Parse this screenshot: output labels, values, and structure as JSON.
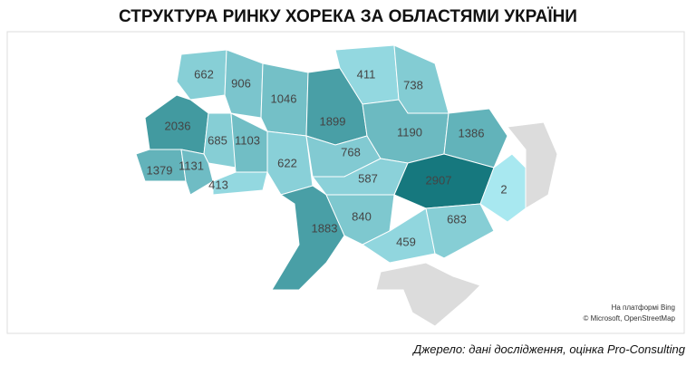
{
  "title": "СТРУКТУРА РИНКУ ХОРЕКА ЗА ОБЛАСТЯМИ УКРАЇНИ",
  "regions": [
    {
      "value": 662
    },
    {
      "value": 906
    },
    {
      "value": 1046
    },
    {
      "value": 1899
    },
    {
      "value": 411
    },
    {
      "value": 738
    },
    {
      "value": 2036
    },
    {
      "value": 685
    },
    {
      "value": 1103
    },
    {
      "value": 622
    },
    {
      "value": 1379
    },
    {
      "value": 1131
    },
    {
      "value": 413
    },
    {
      "value": 768
    },
    {
      "value": 1190
    },
    {
      "value": 1386
    },
    {
      "value": 587
    },
    {
      "value": 2907
    },
    {
      "value": 2
    },
    {
      "value": 1883
    },
    {
      "value": 840
    },
    {
      "value": 459
    },
    {
      "value": 683
    }
  ],
  "attribution": [
    "На платформі Bing",
    "© Microsoft, OpenStreetMap"
  ],
  "source": "Джерело: дані дослідження, оцінка Pro-Consulting"
}
